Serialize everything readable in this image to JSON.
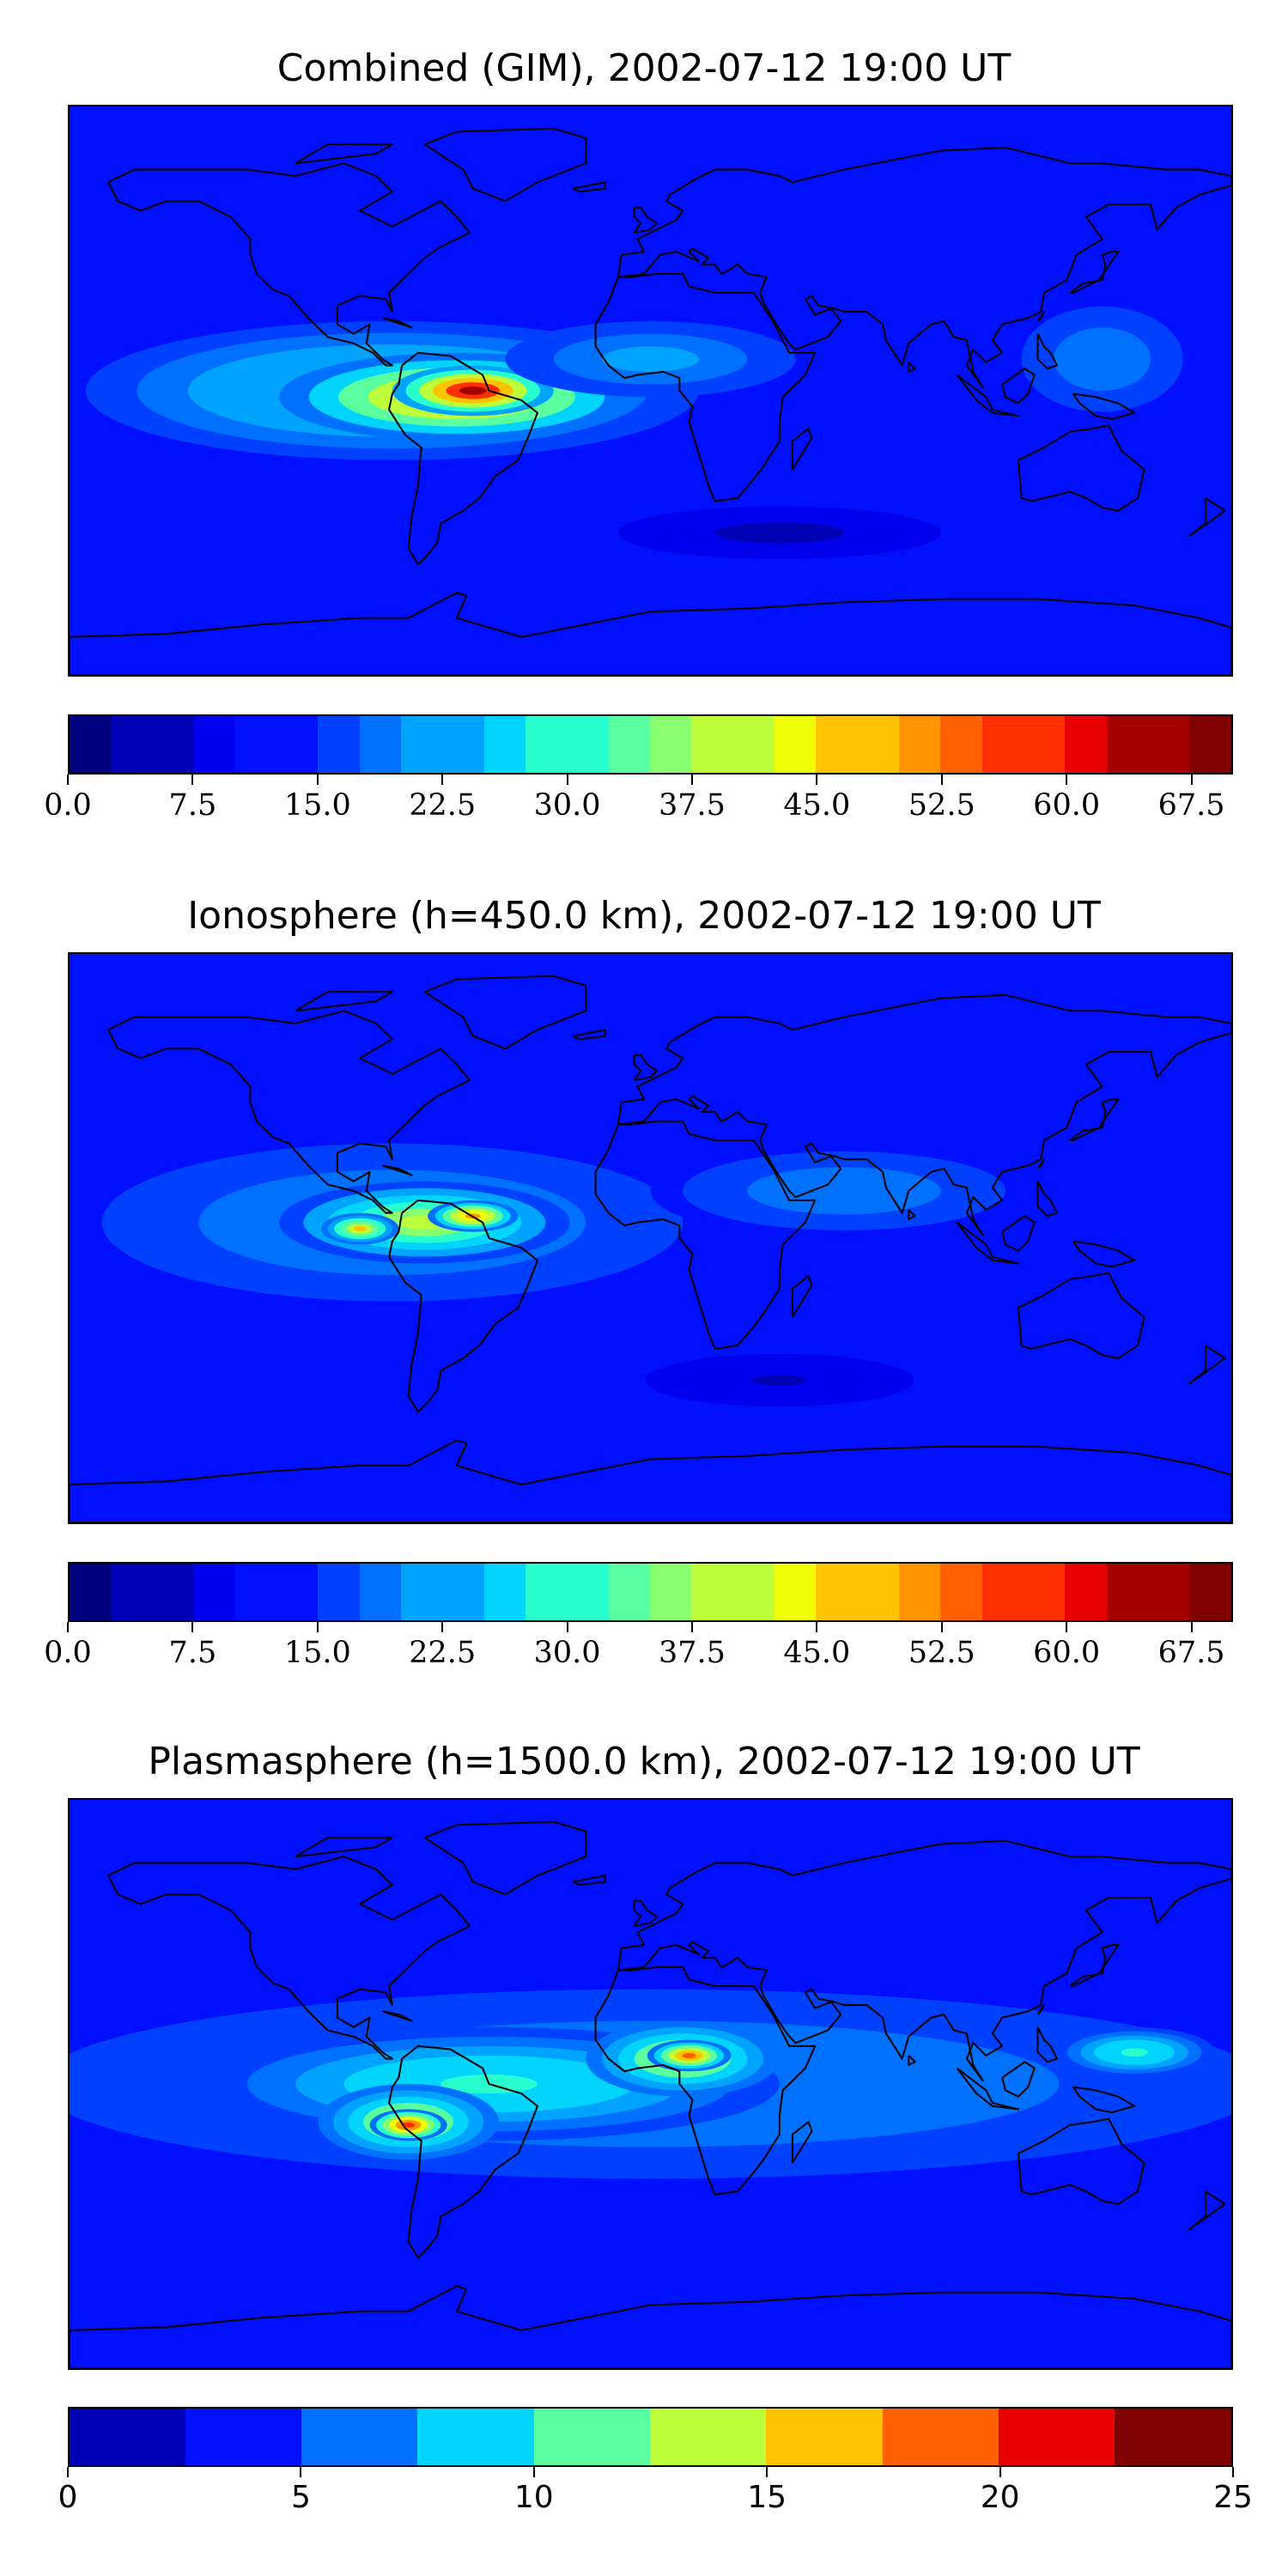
{
  "colormap": [
    "#00007f",
    "#0000b5",
    "#0000ec",
    "#0010ff",
    "#0040ff",
    "#0070ff",
    "#00a4ff",
    "#00d4ff",
    "#29ffce",
    "#5affa0",
    "#8aff6f",
    "#bdff3a",
    "#eeff08",
    "#ffc400",
    "#ff9400",
    "#ff6000",
    "#ff3000",
    "#e60000",
    "#a40000",
    "#7f0000"
  ],
  "panels": [
    {
      "title": "Combined (GIM), 2002-07-12 19:00 UT",
      "colorbar": {
        "min": 0,
        "max": 70,
        "levels": 28,
        "tick_values": [
          0,
          7.5,
          15,
          22.5,
          30,
          37.5,
          45,
          52.5,
          60,
          67.5
        ],
        "tick_labels": [
          "0.0",
          "7.5",
          "15.0",
          "22.5",
          "30.0",
          "37.5",
          "45.0",
          "52.5",
          "60.0",
          "67.5"
        ]
      },
      "blobs": [
        {
          "lon": -80,
          "lat": 0,
          "rx": 95,
          "ry": 22,
          "value": 30
        },
        {
          "lon": -60,
          "lat": -2,
          "rx": 55,
          "ry": 14,
          "value": 52
        },
        {
          "lon": -55,
          "lat": 0,
          "rx": 25,
          "ry": 8,
          "value": 66
        },
        {
          "lon": 0,
          "lat": 10,
          "rx": 45,
          "ry": 12,
          "value": 24
        },
        {
          "lon": 140,
          "lat": 10,
          "rx": 30,
          "ry": 20,
          "value": 20
        },
        {
          "lon": 40,
          "lat": -45,
          "rx": 60,
          "ry": 10,
          "value": 5
        }
      ]
    },
    {
      "title": "Ionosphere  (h=450.0 km), 2002-07-12 19:00 UT",
      "colorbar": {
        "min": 0,
        "max": 70,
        "levels": 28,
        "tick_values": [
          0,
          7.5,
          15,
          22.5,
          30,
          37.5,
          45,
          52.5,
          60,
          67.5
        ],
        "tick_labels": [
          "0.0",
          "7.5",
          "15.0",
          "22.5",
          "30.0",
          "37.5",
          "45.0",
          "52.5",
          "60.0",
          "67.5"
        ]
      },
      "blobs": [
        {
          "lon": -80,
          "lat": 5,
          "rx": 90,
          "ry": 25,
          "value": 24
        },
        {
          "lon": -70,
          "lat": 5,
          "rx": 45,
          "ry": 13,
          "value": 40
        },
        {
          "lon": -55,
          "lat": 7,
          "rx": 14,
          "ry": 5,
          "value": 52
        },
        {
          "lon": -90,
          "lat": 3,
          "rx": 12,
          "ry": 5,
          "value": 46
        },
        {
          "lon": 60,
          "lat": 15,
          "rx": 60,
          "ry": 15,
          "value": 20
        },
        {
          "lon": 40,
          "lat": -45,
          "rx": 50,
          "ry": 10,
          "value": 6
        }
      ]
    },
    {
      "title": "Plasmasphere (h=1500.0 km), 2002-07-12 19:00 UT",
      "colorbar": {
        "min": 0,
        "max": 25,
        "levels": 10,
        "tick_values": [
          0,
          5,
          10,
          15,
          20,
          25
        ],
        "tick_labels": [
          "0",
          "5",
          "10",
          "15",
          "20",
          "25"
        ]
      },
      "blobs": [
        {
          "lon": 0,
          "lat": 0,
          "rx": 190,
          "ry": 30,
          "value": 8
        },
        {
          "lon": -50,
          "lat": 0,
          "rx": 90,
          "ry": 18,
          "value": 11
        },
        {
          "lon": -75,
          "lat": -12,
          "rx": 28,
          "ry": 12,
          "value": 15
        },
        {
          "lon": -75,
          "lat": -13,
          "rx": 12,
          "ry": 5,
          "value": 21
        },
        {
          "lon": 10,
          "lat": 8,
          "rx": 30,
          "ry": 12,
          "value": 15
        },
        {
          "lon": 12,
          "lat": 9,
          "rx": 13,
          "ry": 5,
          "value": 19
        },
        {
          "lon": 150,
          "lat": 10,
          "rx": 25,
          "ry": 8,
          "value": 11
        }
      ]
    }
  ]
}
